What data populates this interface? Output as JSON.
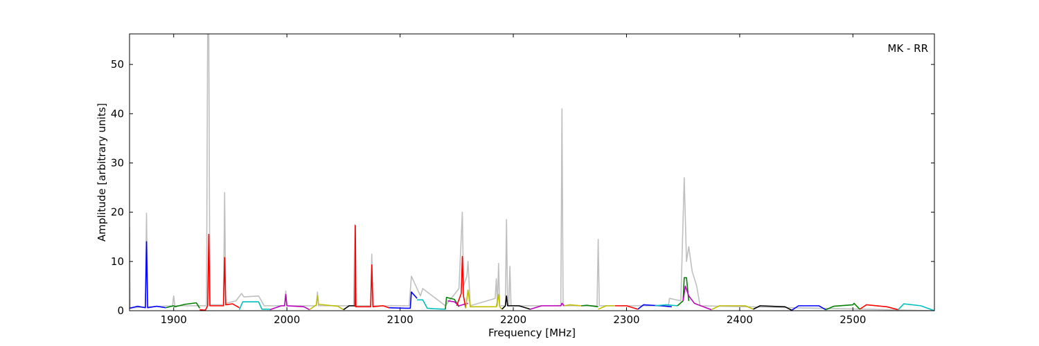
{
  "chart_data": {
    "type": "line",
    "x_label": "Frequency [MHz]",
    "y_label": "Amplitude [arbitrary units]",
    "annotation": "MK - RR",
    "xlim": [
      1861,
      2572
    ],
    "ylim": [
      0,
      56.2
    ],
    "xticks": [
      1900,
      2000,
      2100,
      2200,
      2300,
      2400,
      2500
    ],
    "yticks": [
      0,
      10,
      20,
      30,
      40,
      50
    ],
    "series": [
      {
        "color": "#bfbfbf",
        "x": [
          1861,
          1861.5,
          1875,
          1876,
          1877,
          1899,
          1900,
          1901,
          1929,
          1930,
          1931,
          1932,
          1944,
          1945,
          1946,
          1955,
          1960,
          1962,
          1975,
          1980,
          1998,
          1999,
          2000,
          2026,
          2027,
          2028,
          2059,
          2060,
          2061,
          2074,
          2075,
          2076,
          2108,
          2110,
          2118,
          2120,
          2140,
          2152,
          2155,
          2156,
          2159,
          2160,
          2162,
          2184,
          2185,
          2186,
          2187,
          2188,
          2193,
          2194,
          2195,
          2196,
          2197,
          2198,
          2242,
          2243,
          2244,
          2274,
          2275,
          2276,
          2337,
          2338,
          2348,
          2351,
          2353,
          2355,
          2358,
          2362,
          2365,
          2572
        ],
        "values": [
          17,
          0.5,
          0.8,
          19.8,
          0.8,
          1,
          3,
          1,
          1,
          56.2,
          56.2,
          1.2,
          1.2,
          24,
          1.5,
          2,
          3.5,
          2.8,
          3,
          1,
          1,
          4,
          1,
          1,
          3.8,
          1,
          1,
          17.5,
          1,
          1,
          11.5,
          1,
          1,
          7,
          3,
          4.5,
          1,
          4.5,
          20,
          5,
          7,
          10,
          1,
          2.5,
          6.5,
          1,
          9.6,
          1,
          1,
          18.5,
          1,
          1,
          9,
          1,
          1,
          41,
          1,
          1,
          14.5,
          1,
          1,
          2.5,
          2,
          27,
          10,
          13,
          8,
          5,
          1,
          0
        ]
      },
      {
        "color": "#0000ff",
        "x": [
          1861,
          1868,
          1875,
          1876,
          1877,
          1885,
          1893
        ],
        "values": [
          0.5,
          0.9,
          0.6,
          14,
          0.6,
          0.9,
          0.6
        ]
      },
      {
        "color": "#008000",
        "x": [
          1893,
          1900,
          1901,
          1910,
          1920,
          1923
        ],
        "values": [
          0.6,
          1,
          0.8,
          1.3,
          1.6,
          0.5
        ]
      },
      {
        "color": "#ff0000",
        "x": [
          1923,
          1928,
          1930,
          1931,
          1932,
          1944,
          1945,
          1946,
          1952,
          1958
        ],
        "values": [
          0.2,
          0.1,
          1,
          15.5,
          1,
          1,
          10.8,
          1.2,
          1.4,
          0.6
        ]
      },
      {
        "color": "#00bfbf",
        "x": [
          1958,
          1961,
          1975,
          1978,
          1985
        ],
        "values": [
          0.2,
          1.8,
          1.8,
          0.3,
          0.3
        ]
      },
      {
        "color": "#bf00bf",
        "x": [
          1985,
          1995,
          1998,
          1999,
          2000,
          2015,
          2020
        ],
        "values": [
          0.2,
          1,
          1,
          3.3,
          1,
          0.8,
          0.2
        ]
      },
      {
        "color": "#bfbf00",
        "x": [
          2020,
          2026,
          2027,
          2028,
          2045,
          2050
        ],
        "values": [
          0.2,
          1.2,
          3,
          1.3,
          0.9,
          0.2
        ]
      },
      {
        "color": "#000000",
        "x": [
          2050,
          2055,
          2060
        ],
        "values": [
          0.2,
          1,
          1
        ]
      },
      {
        "color": "#ff0000",
        "x": [
          2060,
          2060.5,
          2061,
          2074,
          2075,
          2076,
          2085,
          2090
        ],
        "values": [
          0.8,
          17.3,
          0.8,
          0.8,
          9.3,
          0.8,
          1,
          0.6
        ]
      },
      {
        "color": "#0000ff",
        "x": [
          2090,
          2105,
          2109,
          2110,
          2115
        ],
        "values": [
          0.6,
          0.5,
          0.5,
          3.8,
          2.5
        ]
      },
      {
        "color": "#00bfbf",
        "x": [
          2115,
          2120,
          2124,
          2130,
          2140
        ],
        "values": [
          2.2,
          2.2,
          0.5,
          0.4,
          0.3
        ]
      },
      {
        "color": "#008000",
        "x": [
          2140,
          2141,
          2148,
          2152
        ],
        "values": [
          0.3,
          2.7,
          2.3,
          0.8
        ]
      },
      {
        "color": "#bf00bf",
        "x": [
          2142,
          2148,
          2152,
          2160
        ],
        "values": [
          2,
          1.8,
          1,
          1.5
        ]
      },
      {
        "color": "#ff0000",
        "x": [
          2150,
          2154,
          2155,
          2156,
          2158
        ],
        "values": [
          1,
          3.5,
          11,
          3,
          0.5
        ]
      },
      {
        "color": "#bfbf00",
        "x": [
          2158,
          2160,
          2162,
          2185,
          2187,
          2188,
          2190
        ],
        "values": [
          0.5,
          4.2,
          0.8,
          0.8,
          3.3,
          0.8,
          0.3
        ]
      },
      {
        "color": "#000000",
        "x": [
          2190,
          2193,
          2194,
          2195,
          2205,
          2215
        ],
        "values": [
          0.3,
          1,
          3,
          1,
          1,
          0.3
        ]
      },
      {
        "color": "#bf00bf",
        "x": [
          2215,
          2225,
          2242,
          2243,
          2245
        ],
        "values": [
          0.3,
          1,
          1,
          1.5,
          1
        ]
      },
      {
        "color": "#bfbf00",
        "x": [
          2245,
          2250,
          2260
        ],
        "values": [
          1,
          1.2,
          1
        ]
      },
      {
        "color": "#008000",
        "x": [
          2260,
          2265,
          2275
        ],
        "values": [
          1,
          1.1,
          0.8
        ]
      },
      {
        "color": "#bfbf00",
        "x": [
          2275,
          2282,
          2290
        ],
        "values": [
          0.3,
          1,
          1
        ]
      },
      {
        "color": "#ff0000",
        "x": [
          2290,
          2300,
          2310
        ],
        "values": [
          1,
          1,
          0.3
        ]
      },
      {
        "color": "#0000ff",
        "x": [
          2310,
          2315,
          2330,
          2340
        ],
        "values": [
          0.3,
          1.2,
          1,
          0.8
        ]
      },
      {
        "color": "#00bfbf",
        "x": [
          2325,
          2335,
          2345
        ],
        "values": [
          1,
          1.2,
          1
        ]
      },
      {
        "color": "#008000",
        "x": [
          2345,
          2350,
          2351,
          2353,
          2355
        ],
        "values": [
          1,
          2,
          6.7,
          6.7,
          2
        ]
      },
      {
        "color": "#bf00bf",
        "x": [
          2350,
          2352,
          2355,
          2360,
          2368,
          2375
        ],
        "values": [
          2,
          5,
          3,
          1.5,
          0.8,
          0.2
        ]
      },
      {
        "color": "#bfbf00",
        "x": [
          2375,
          2382,
          2405,
          2412
        ],
        "values": [
          0.2,
          1,
          1,
          0.3
        ]
      },
      {
        "color": "#000000",
        "x": [
          2412,
          2418,
          2440,
          2446
        ],
        "values": [
          0.3,
          1,
          0.8,
          0.1
        ]
      },
      {
        "color": "#0000ff",
        "x": [
          2446,
          2452,
          2470,
          2476
        ],
        "values": [
          0.1,
          1,
          1,
          0.2
        ]
      },
      {
        "color": "#008000",
        "x": [
          2476,
          2483,
          2500,
          2501,
          2506
        ],
        "values": [
          0.2,
          0.9,
          1.2,
          1.5,
          0.3
        ]
      },
      {
        "color": "#ff0000",
        "x": [
          2506,
          2512,
          2530,
          2540
        ],
        "values": [
          0.3,
          1.2,
          0.8,
          0.2
        ]
      },
      {
        "color": "#00bfbf",
        "x": [
          2540,
          2545,
          2560,
          2572
        ],
        "values": [
          0.2,
          1.4,
          1,
          0
        ]
      }
    ]
  }
}
